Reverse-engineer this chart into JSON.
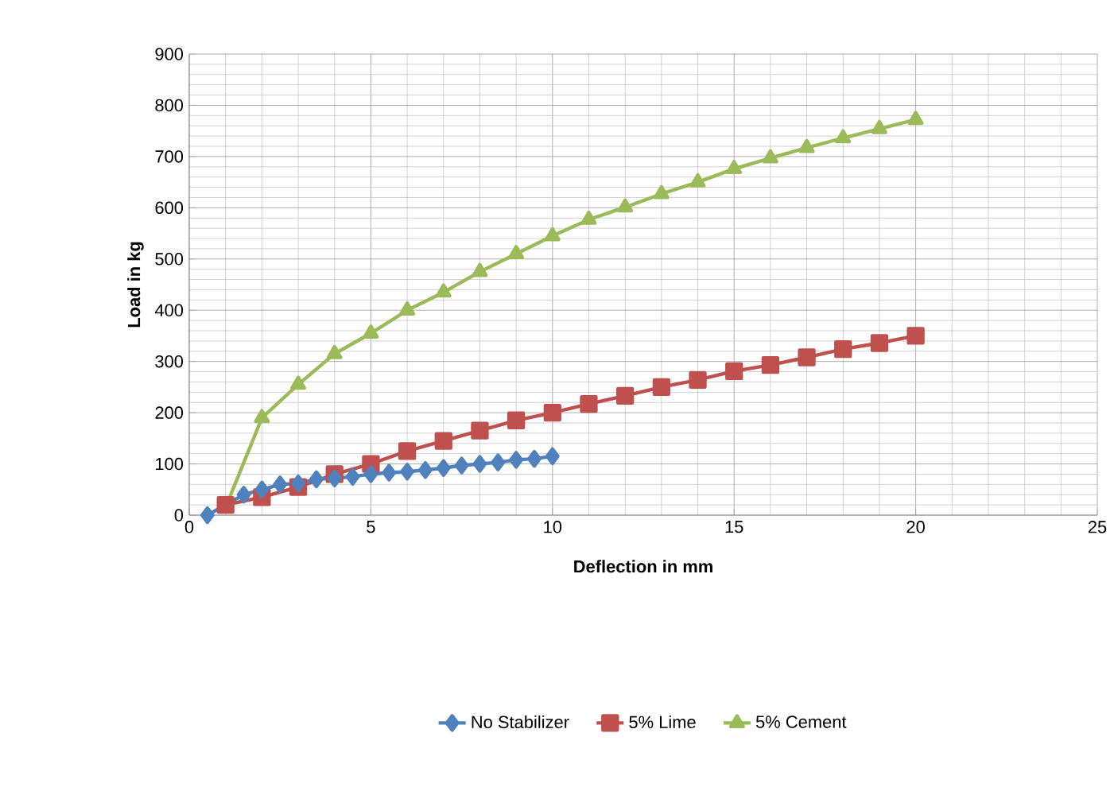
{
  "chart_data": {
    "type": "line",
    "xlabel": "Deflection in mm",
    "ylabel": "Load in kg",
    "xlim": [
      0,
      25
    ],
    "ylim": [
      0,
      900
    ],
    "xticks": [
      0,
      5,
      10,
      15,
      20,
      25
    ],
    "yticks": [
      0,
      100,
      200,
      300,
      400,
      500,
      600,
      700,
      800,
      900
    ],
    "grid": true,
    "legend": "bottom",
    "line_style": "solid",
    "series": [
      {
        "name": "No Stabilizer",
        "color": "#4f81bd",
        "marker": "diamond",
        "x": [
          0.5,
          1,
          1.5,
          2,
          2.5,
          3,
          3.5,
          4,
          4.5,
          5,
          5.5,
          6,
          6.5,
          7,
          7.5,
          8,
          8.5,
          9,
          9.5,
          10
        ],
        "values": [
          0,
          null,
          40,
          50,
          60,
          62,
          70,
          72,
          75,
          80,
          83,
          85,
          88,
          92,
          97,
          100,
          103,
          108,
          110,
          115
        ]
      },
      {
        "name": "5% Lime",
        "color": "#c0504d",
        "marker": "square",
        "x": [
          1,
          2,
          3,
          4,
          5,
          6,
          7,
          8,
          9,
          10,
          11,
          12,
          13,
          14,
          15,
          16,
          17,
          18,
          19,
          20
        ],
        "values": [
          20,
          35,
          55,
          80,
          100,
          125,
          145,
          165,
          185,
          200,
          217,
          233,
          250,
          264,
          281,
          293,
          308,
          324,
          336,
          350
        ]
      },
      {
        "name": "5% Cement",
        "color": "#9bbb59",
        "marker": "triangle",
        "x": [
          1,
          2,
          3,
          4,
          5,
          6,
          7,
          8,
          9,
          10,
          11,
          12,
          13,
          14,
          15,
          16,
          17,
          18,
          19,
          20
        ],
        "values": [
          15,
          190,
          255,
          315,
          355,
          400,
          435,
          475,
          510,
          545,
          577,
          601,
          627,
          650,
          676,
          697,
          717,
          736,
          754,
          772
        ]
      }
    ]
  }
}
